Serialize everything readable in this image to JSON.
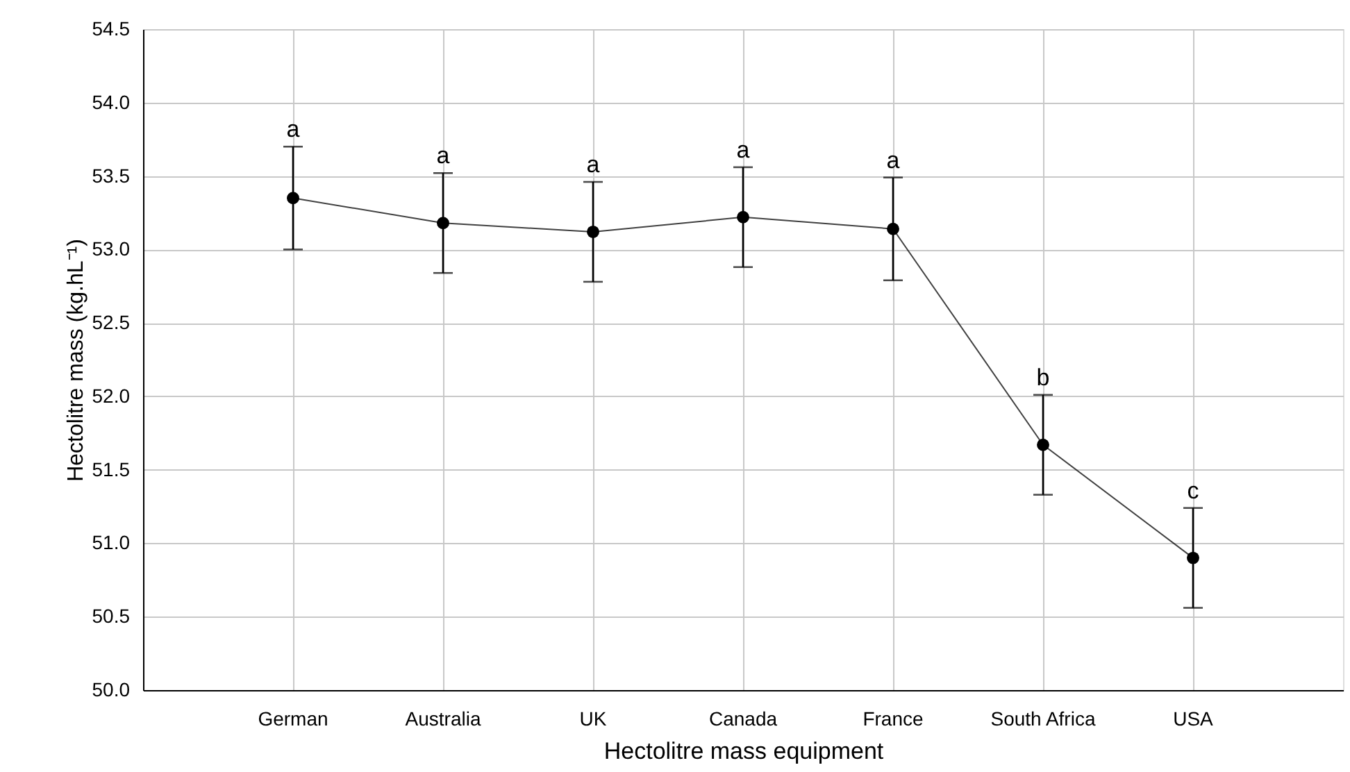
{
  "chart_data": {
    "type": "line",
    "xlabel": "Hectolitre mass equipment",
    "ylabel": "Hectolitre mass (kg.hL⁻¹)",
    "categories": [
      "German",
      "Australia",
      "UK",
      "Canada",
      "France",
      "South Africa",
      "USA"
    ],
    "series": [
      {
        "color": "#000000",
        "values": [
          53.35,
          53.18,
          53.12,
          53.22,
          53.14,
          51.67,
          50.9
        ],
        "errors": [
          0.35,
          0.34,
          0.34,
          0.34,
          0.35,
          0.34,
          0.34
        ]
      }
    ],
    "ylim": [
      50.0,
      54.5
    ],
    "yticks": [
      {
        "value": 50.0,
        "label": "50.0"
      },
      {
        "value": 50.5,
        "label": "50.5"
      },
      {
        "value": 51.0,
        "label": "51.0"
      },
      {
        "value": 51.5,
        "label": "51.5"
      },
      {
        "value": 52.0,
        "label": "52.0"
      },
      {
        "value": 52.5,
        "label": "52.5"
      },
      {
        "value": 53.0,
        "label": "53.0"
      },
      {
        "value": 53.5,
        "label": "53.5"
      },
      {
        "value": 54.0,
        "label": "54.0"
      },
      {
        "value": 54.5,
        "label": "54.5"
      }
    ],
    "grid": true,
    "marker": "circle",
    "line_style": "solid",
    "annotations": [
      {
        "text": "a",
        "x": "German",
        "y": 53.7
      },
      {
        "text": "a",
        "x": "Australia",
        "y": 53.52
      },
      {
        "text": "a",
        "x": "UK",
        "y": 53.46
      },
      {
        "text": "a",
        "x": "Canada",
        "y": 53.56
      },
      {
        "text": "a",
        "x": "France",
        "y": 53.49
      },
      {
        "text": "b",
        "x": "South Africa",
        "y": 52.01
      },
      {
        "text": "c",
        "x": "USA",
        "y": 51.24
      }
    ]
  }
}
